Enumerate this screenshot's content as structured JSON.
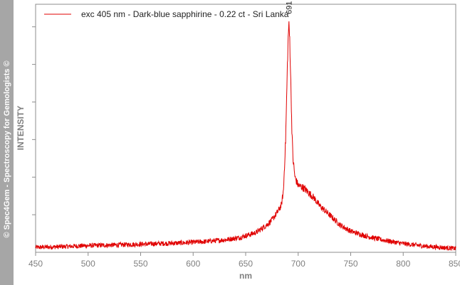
{
  "watermark": "© Spec4Gem - Spectroscopy for Gemologists ©",
  "colors": {
    "series": "#e00000",
    "axis": "#8c8c8c",
    "band": "#a6a6a6"
  },
  "chart_data": {
    "type": "line",
    "xlabel": "nm",
    "ylabel": "INTENSITY",
    "xlim": [
      450,
      850
    ],
    "ylim": [
      0,
      1
    ],
    "x_ticks": [
      450,
      500,
      550,
      600,
      650,
      700,
      750,
      800,
      850
    ],
    "grid": false,
    "legend_position": "top-left",
    "series": [
      {
        "name": "exc 405 nm - Dark-blue sapphirine - 0.22 ct - Sri Lanka",
        "color": "#e00000",
        "x": [
          450,
          470,
          500,
          530,
          560,
          590,
          610,
          630,
          645,
          660,
          670,
          675,
          680,
          684,
          686,
          688,
          689,
          690,
          691,
          692,
          693,
          694,
          695,
          697,
          700,
          705,
          710,
          715,
          720,
          730,
          740,
          750,
          765,
          780,
          800,
          820,
          850
        ],
        "y": [
          0.02,
          0.022,
          0.027,
          0.03,
          0.034,
          0.038,
          0.043,
          0.05,
          0.06,
          0.08,
          0.11,
          0.13,
          0.16,
          0.19,
          0.25,
          0.45,
          0.62,
          0.8,
          0.92,
          0.86,
          0.68,
          0.5,
          0.38,
          0.3,
          0.27,
          0.26,
          0.24,
          0.22,
          0.19,
          0.15,
          0.11,
          0.085,
          0.065,
          0.05,
          0.035,
          0.025,
          0.015
        ]
      }
    ],
    "annotations": [
      {
        "x": 691,
        "label": "691"
      }
    ]
  }
}
